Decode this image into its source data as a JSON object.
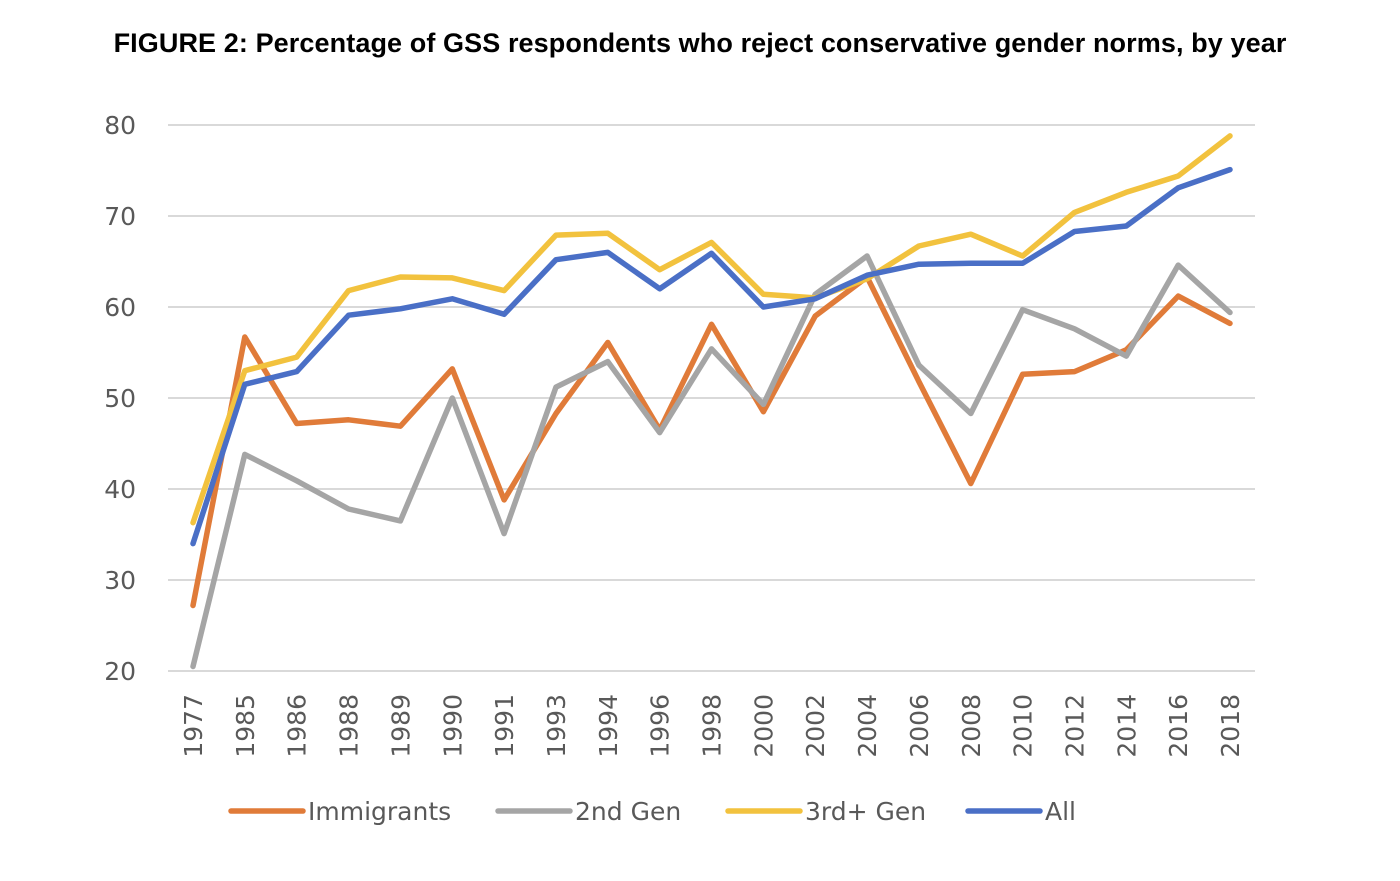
{
  "chart_data": {
    "type": "line",
    "title": "FIGURE 2: Percentage of GSS respondents who reject conservative gender norms, by year",
    "xlabel": "",
    "ylabel": "",
    "ylim": [
      20,
      80
    ],
    "yticks": [
      "20",
      "30",
      "40",
      "50",
      "60",
      "70",
      "80"
    ],
    "grid": true,
    "legend_position": "bottom",
    "categories": [
      "1977",
      "1985",
      "1986",
      "1988",
      "1989",
      "1990",
      "1991",
      "1993",
      "1994",
      "1996",
      "1998",
      "2000",
      "2002",
      "2004",
      "2006",
      "2008",
      "2010",
      "2012",
      "2014",
      "2016",
      "2018"
    ],
    "series": [
      {
        "name": "Immigrants",
        "color": "#E07B39",
        "values": [
          27.2,
          56.7,
          47.2,
          47.6,
          46.9,
          53.2,
          38.8,
          48.3,
          56.1,
          46.5,
          58.1,
          48.5,
          59.0,
          63.3,
          51.8,
          40.6,
          52.6,
          52.9,
          55.3,
          61.2,
          58.2
        ]
      },
      {
        "name": "2nd Gen",
        "color": "#A5A5A5",
        "values": [
          20.5,
          43.8,
          40.9,
          37.8,
          36.5,
          50.0,
          35.1,
          51.2,
          54.0,
          46.2,
          55.4,
          49.3,
          61.4,
          65.6,
          53.6,
          48.3,
          59.7,
          57.6,
          54.6,
          64.6,
          59.4
        ]
      },
      {
        "name": "3rd+ Gen",
        "color": "#F2C23E",
        "values": [
          36.3,
          53.0,
          54.5,
          61.8,
          63.3,
          63.2,
          61.8,
          67.9,
          68.1,
          64.1,
          67.1,
          61.4,
          61.0,
          63.1,
          66.7,
          68.0,
          65.6,
          70.4,
          72.6,
          74.4,
          78.8
        ]
      },
      {
        "name": "All",
        "color": "#4A6FC6",
        "values": [
          34.0,
          51.5,
          52.9,
          59.1,
          59.8,
          60.9,
          59.2,
          65.2,
          66.0,
          62.0,
          65.9,
          60.0,
          60.9,
          63.5,
          64.7,
          64.8,
          64.8,
          68.3,
          68.9,
          73.1,
          75.1
        ]
      }
    ]
  }
}
